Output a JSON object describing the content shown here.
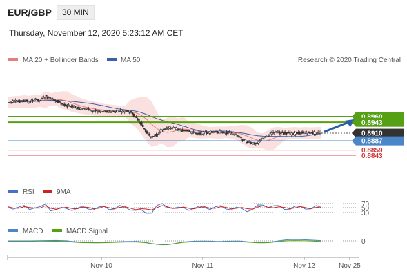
{
  "header": {
    "pair": "EUR/GBP",
    "timeframe": "30 MIN",
    "datetime": "Thursday, November 12, 2020 5:23:12 AM CET"
  },
  "legend": {
    "ma20": "MA 20 + Bollinger Bands",
    "ma50": "MA 50",
    "credit": "Research © 2020 Trading Central",
    "rsi": "RSI",
    "rsi_signal": "9MA",
    "macd": "MACD",
    "macd_signal": "MACD Signal"
  },
  "colors": {
    "ma20": "#e87c7c",
    "ma50": "#3d5fa8",
    "resistance": "#55a015",
    "support": "#4a86c8",
    "last": "#333333",
    "weak": "#e89aa0",
    "candle": "#333333",
    "arrow": "#2a5fa8",
    "band": "#fadada",
    "rsi": "#4a6fc8",
    "rsi_signal": "#cc2222",
    "macd": "#4a86c8",
    "macd_signal": "#55a015"
  },
  "chart_data": {
    "type": "candlestick",
    "instrument": "EUR/GBP",
    "interval": "30 MIN",
    "x_ticks": [
      "Nov 10",
      "Nov 11",
      "Nov 12",
      "Nov 25"
    ],
    "price_levels": [
      {
        "value": "0.8960",
        "role": "resistance"
      },
      {
        "value": "0.8943",
        "role": "resistance"
      },
      {
        "value": "0.8910",
        "role": "last"
      },
      {
        "value": "0.8887",
        "role": "support"
      },
      {
        "value": "0.8859",
        "role": "weak"
      },
      {
        "value": "0.8843",
        "role": "weak"
      }
    ],
    "close_path": [
      0.9002,
      0.9005,
      0.9006,
      0.9008,
      0.9004,
      0.9011,
      0.9009,
      0.9021,
      0.9014,
      0.9008,
      0.9,
      0.8994,
      0.899,
      0.8986,
      0.8984,
      0.8981,
      0.8979,
      0.8976,
      0.8977,
      0.8975,
      0.8974,
      0.8976,
      0.8975,
      0.8973,
      0.896,
      0.894,
      0.8915,
      0.8898,
      0.8905,
      0.8918,
      0.8925,
      0.8928,
      0.8922,
      0.8918,
      0.8914,
      0.8912,
      0.891,
      0.8911,
      0.8912,
      0.8913,
      0.8914,
      0.8913,
      0.891,
      0.8905,
      0.8895,
      0.8884,
      0.8878,
      0.8882,
      0.8894,
      0.8905,
      0.8913,
      0.8914,
      0.891,
      0.8909,
      0.891,
      0.8911,
      0.8912,
      0.8911,
      0.8912,
      0.891
    ],
    "target_arrow": {
      "from": 0.891,
      "to": 0.8952
    },
    "rsi": {
      "levels": [
        "70",
        "50",
        "30"
      ]
    },
    "macd": {
      "levels": [
        "0"
      ]
    }
  }
}
